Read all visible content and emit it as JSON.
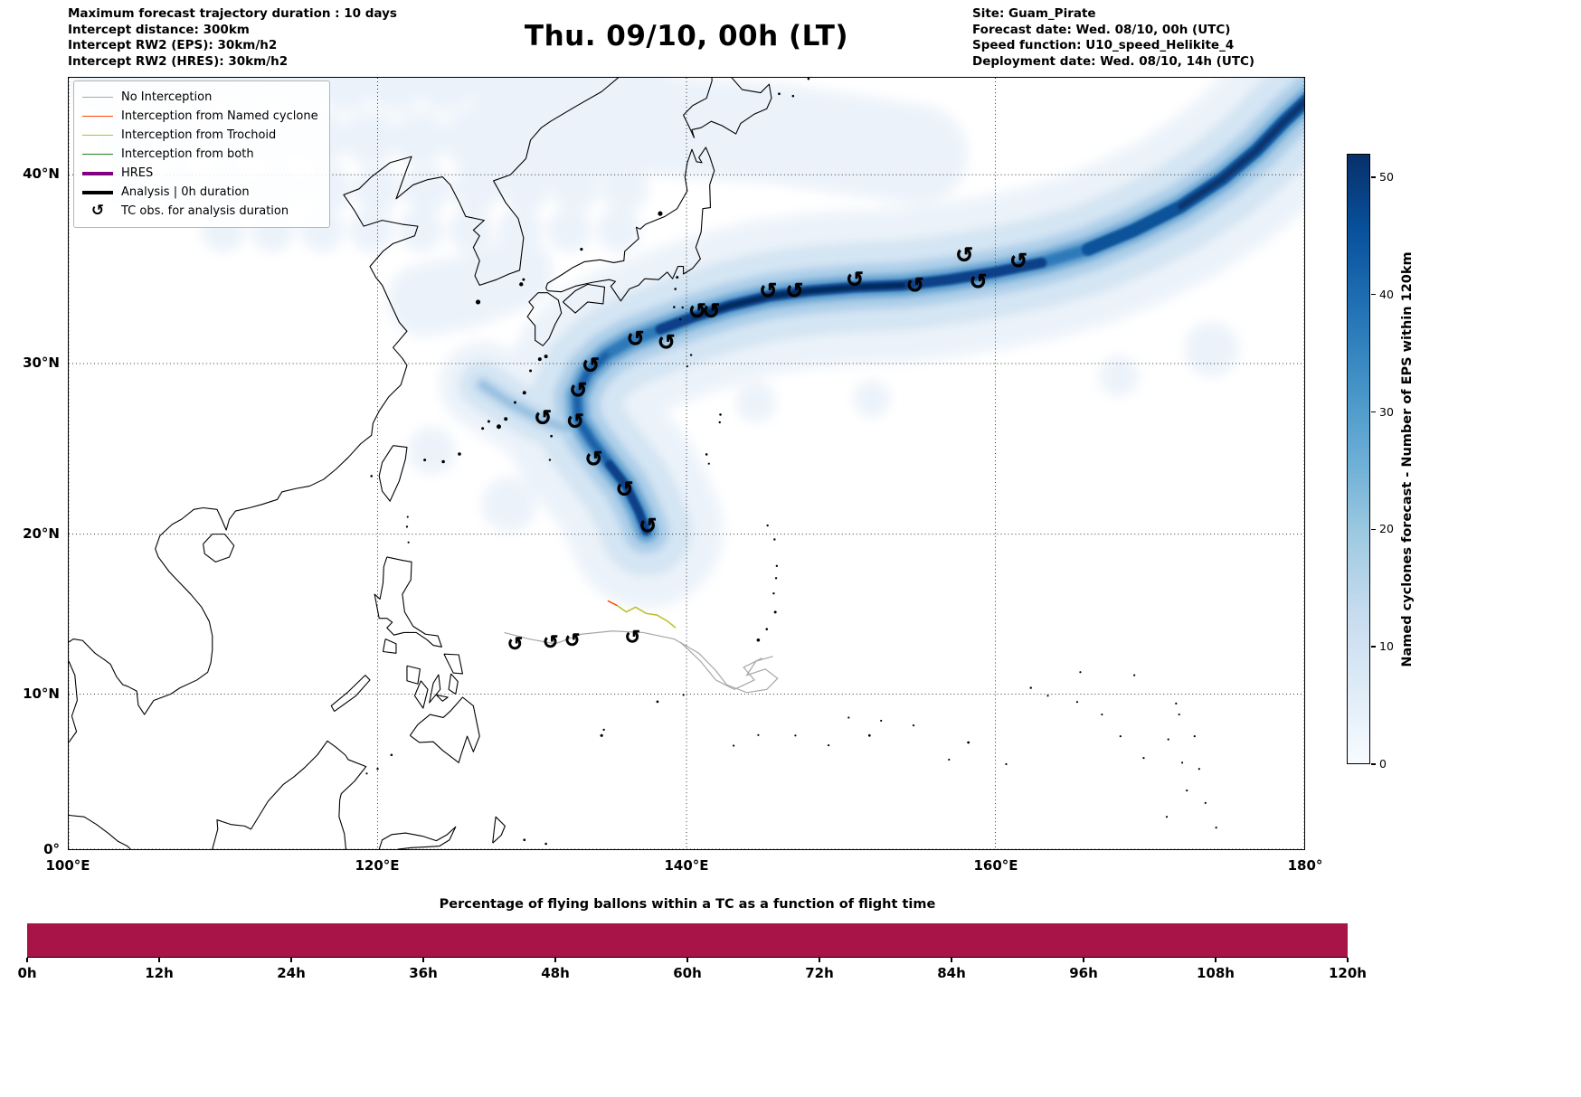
{
  "header": {
    "left_lines": [
      "Maximum forecast trajectory duration : 10 days",
      "Intercept distance: 300km",
      "Intercept RW2 (EPS):  30km/h2",
      "Intercept RW2 (HRES): 30km/h2"
    ],
    "title": "Thu. 09/10, 00h (LT)",
    "right_lines": [
      "Site: Guam_Pirate",
      "Forecast date: Wed. 08/10, 00h (UTC)",
      "Speed function: U10_speed_Helikite_4",
      "Deployment date: Wed. 08/10, 14h (UTC)"
    ]
  },
  "legend": {
    "items": [
      {
        "label": "No Interception",
        "color": "#a6a6a6",
        "lw": 1.5,
        "type": "line"
      },
      {
        "label": "Interception from Named cyclone",
        "color": "#ff4500",
        "lw": 1.5,
        "type": "line"
      },
      {
        "label": "Interception from Trochoid",
        "color": "#bcbd22",
        "lw": 1.5,
        "type": "line"
      },
      {
        "label": "Interception from both",
        "color": "#208020",
        "lw": 1.5,
        "type": "line"
      },
      {
        "label": "HRES",
        "color": "#800080",
        "lw": 4,
        "type": "line"
      },
      {
        "label": "Analysis | 0h duration",
        "color": "#000000",
        "lw": 4,
        "type": "line"
      },
      {
        "label": "TC obs. for analysis duration",
        "glyph": "↺",
        "type": "marker"
      }
    ]
  },
  "chart_data": [
    {
      "type": "heatmap",
      "subtype": "geographic-density-track-map",
      "title": "Thu. 09/10, 00h (LT)",
      "projection": "mercator",
      "grid": true,
      "lon_range": [
        100,
        180
      ],
      "lat_range": [
        0,
        44.7
      ],
      "x_ticks": [
        {
          "lon": 100,
          "label": "100°E"
        },
        {
          "lon": 120,
          "label": "120°E"
        },
        {
          "lon": 140,
          "label": "140°E"
        },
        {
          "lon": 160,
          "label": "160°E"
        },
        {
          "lon": 180,
          "label": "180°"
        }
      ],
      "y_ticks": [
        {
          "lat": 0,
          "label": "0°"
        },
        {
          "lat": 10,
          "label": "10°N"
        },
        {
          "lat": 20,
          "label": "20°N"
        },
        {
          "lat": 30,
          "label": "30°N"
        },
        {
          "lat": 40,
          "label": "40°N"
        }
      ],
      "colorbar": {
        "label": "Named cyclones forecast - Number of EPS within 120km",
        "ticks": [
          0,
          10,
          20,
          30,
          40,
          50
        ],
        "vmin": 0,
        "vmax": 52,
        "colormap": "Blues"
      },
      "density_track_spine": [
        [
          137.4,
          20.2
        ],
        [
          136.9,
          21.4
        ],
        [
          136.1,
          22.9
        ],
        [
          135.0,
          24.2
        ],
        [
          133.9,
          25.5
        ],
        [
          133.0,
          26.8
        ],
        [
          132.9,
          28.2
        ],
        [
          133.6,
          29.5
        ],
        [
          134.8,
          30.5
        ],
        [
          136.4,
          31.3
        ],
        [
          138.3,
          31.9
        ],
        [
          140.5,
          32.6
        ],
        [
          142.8,
          33.2
        ],
        [
          145.3,
          33.7
        ],
        [
          148.0,
          34.0
        ],
        [
          151.0,
          34.2
        ],
        [
          154.0,
          34.3
        ],
        [
          157.0,
          34.6
        ],
        [
          160.0,
          35.0
        ],
        [
          163.0,
          35.5
        ],
        [
          166.0,
          36.2
        ],
        [
          169.0,
          37.2
        ],
        [
          172.0,
          38.4
        ],
        [
          174.7,
          39.8
        ],
        [
          176.9,
          41.2
        ],
        [
          178.7,
          42.6
        ],
        [
          180.6,
          43.9
        ]
      ],
      "density_track_branch": [
        [
          126.8,
          28.8
        ],
        [
          128.5,
          27.8
        ],
        [
          130.4,
          26.9
        ],
        [
          132.2,
          26.3
        ],
        [
          133.4,
          26.5
        ]
      ],
      "tc_obs_track": [
        [
          137.5,
          20.5
        ],
        [
          136.0,
          22.7
        ],
        [
          134.0,
          24.5
        ],
        [
          132.8,
          26.7
        ],
        [
          130.7,
          26.9
        ],
        [
          133.0,
          28.5
        ],
        [
          133.8,
          29.9
        ],
        [
          136.7,
          31.4
        ],
        [
          138.7,
          31.2
        ],
        [
          140.7,
          32.9
        ],
        [
          141.6,
          32.9
        ],
        [
          145.3,
          34.0
        ],
        [
          147.0,
          34.0
        ],
        [
          150.9,
          34.6
        ],
        [
          154.8,
          34.3
        ],
        [
          158.0,
          35.9
        ],
        [
          158.9,
          34.5
        ],
        [
          161.5,
          35.6
        ]
      ],
      "tc_obs_south": [
        [
          128.9,
          13.2
        ],
        [
          131.2,
          13.3
        ],
        [
          132.6,
          13.4
        ],
        [
          136.5,
          13.6
        ]
      ],
      "no_interception_tracks": [
        [
          [
            128.2,
            13.9
          ],
          [
            129.8,
            13.5
          ],
          [
            131.5,
            13.2
          ],
          [
            133.2,
            13.8
          ],
          [
            135.2,
            14.0
          ],
          [
            137.2,
            13.9
          ],
          [
            139.2,
            13.5
          ],
          [
            140.8,
            12.6
          ],
          [
            141.9,
            11.5
          ],
          [
            142.6,
            10.6
          ],
          [
            143.9,
            10.1
          ],
          [
            145.2,
            10.3
          ],
          [
            145.9,
            11.0
          ],
          [
            145.1,
            11.6
          ],
          [
            143.9,
            11.2
          ],
          [
            144.5,
            12.1
          ],
          [
            145.6,
            12.4
          ]
        ],
        [
          [
            139.6,
            13.3
          ],
          [
            140.9,
            12.1
          ],
          [
            141.9,
            10.9
          ],
          [
            143.1,
            10.3
          ],
          [
            144.4,
            10.9
          ],
          [
            143.7,
            11.7
          ],
          [
            144.9,
            12.3
          ]
        ]
      ],
      "trochoid_track": [
        [
          135.5,
          15.6
        ],
        [
          136.1,
          15.2
        ],
        [
          136.7,
          15.5
        ],
        [
          137.4,
          15.1
        ],
        [
          138.1,
          15.0
        ],
        [
          138.8,
          14.6
        ],
        [
          139.3,
          14.2
        ]
      ],
      "named_cyclone_track": [
        [
          134.9,
          15.9
        ],
        [
          135.5,
          15.6
        ]
      ]
    },
    {
      "type": "bar",
      "title": "Percentage of flying ballons within a TC as a function of flight time",
      "categories": [
        "0h",
        "12h",
        "24h",
        "36h",
        "48h",
        "60h",
        "72h",
        "84h",
        "96h",
        "108h",
        "120h"
      ],
      "x_hours": [
        0,
        12,
        24,
        36,
        48,
        60,
        72,
        84,
        96,
        108,
        120
      ],
      "series": [
        {
          "name": "percent_of_balloons_within_TC",
          "values": [
            100,
            100,
            100,
            100,
            100,
            100,
            100,
            100,
            100,
            100,
            100
          ]
        }
      ],
      "ylim": [
        0,
        100
      ],
      "bar_color": "#A81348"
    }
  ]
}
